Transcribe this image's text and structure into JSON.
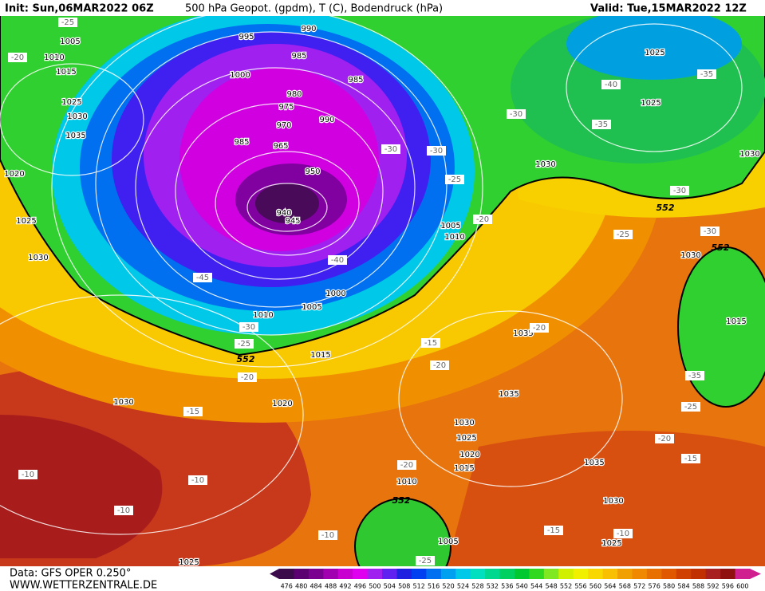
{
  "header": {
    "init": "Init: Sun,06MAR2022 06Z",
    "title": "500 hPa Geopot. (gpdm), T (C), Bodendruck (hPa)",
    "valid": "Valid: Tue,15MAR2022 12Z"
  },
  "footer": {
    "source": "Data: GFS OPER 0.250°",
    "site": "WWW.WETTERZENTRALE.DE"
  },
  "legend": {
    "values": [
      476,
      480,
      484,
      488,
      492,
      496,
      500,
      504,
      508,
      512,
      516,
      520,
      524,
      528,
      532,
      536,
      540,
      544,
      548,
      552,
      556,
      560,
      564,
      568,
      572,
      576,
      580,
      584,
      588,
      592,
      596,
      600
    ],
    "colors": [
      "#3a0a4a",
      "#5a0070",
      "#7a0090",
      "#a000b0",
      "#c800d0",
      "#e000f0",
      "#a020f0",
      "#6020f0",
      "#2020e0",
      "#0040f0",
      "#0070f0",
      "#00a0f0",
      "#00c8e8",
      "#00e0c0",
      "#00d890",
      "#00d060",
      "#00c830",
      "#30d820",
      "#80e820",
      "#d0f000",
      "#f0f000",
      "#f8d800",
      "#f8c000",
      "#f0a000",
      "#f08800",
      "#e87000",
      "#e05800",
      "#d04000",
      "#c03000",
      "#a82020",
      "#901010",
      "#d02090"
    ]
  },
  "map": {
    "pressure_labels": [
      "995",
      "990",
      "985",
      "1005",
      "1010",
      "1015",
      "1000",
      "980",
      "975",
      "970",
      "990",
      "985",
      "1025",
      "1030",
      "1035",
      "985",
      "965",
      "1020",
      "1025",
      "1030",
      "940",
      "945",
      "950",
      "1000",
      "1005",
      "1010",
      "1015",
      "1020",
      "1030",
      "1005",
      "1010",
      "1030",
      "1025",
      "1025",
      "1030",
      "1015",
      "1035",
      "1035",
      "1030",
      "1025",
      "1020",
      "1015",
      "1010",
      "1035",
      "1030",
      "1025",
      "1005",
      "1025",
      "1030"
    ],
    "temperature_labels": [
      "-25",
      "-20",
      "-40",
      "-35",
      "-30",
      "-35",
      "-30",
      "-30",
      "-25",
      "-20",
      "-25",
      "-30",
      "-30",
      "-45",
      "-40",
      "-30",
      "-25",
      "-20",
      "-15",
      "-15",
      "-20",
      "-20",
      "-35",
      "-25",
      "-20",
      "-15",
      "-20",
      "-10",
      "-10",
      "-10",
      "-10",
      "-15",
      "-10",
      "-25"
    ],
    "height_labels": [
      "552",
      "552",
      "552",
      "552"
    ]
  }
}
